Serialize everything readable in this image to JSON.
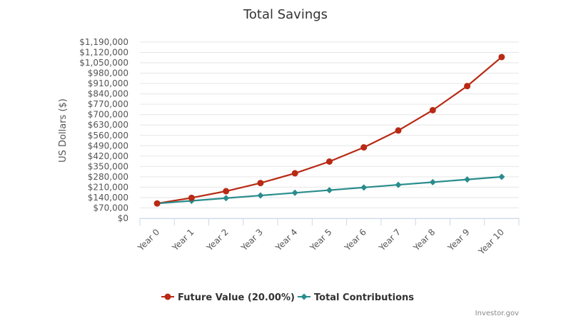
{
  "chart_data": {
    "type": "line",
    "title": "Total Savings",
    "ylabel": "US Dollars ($)",
    "xlabel": "",
    "categories": [
      "Year 0",
      "Year 1",
      "Year 2",
      "Year 3",
      "Year 4",
      "Year 5",
      "Year 6",
      "Year 7",
      "Year 8",
      "Year 9",
      "Year 10"
    ],
    "ylim": [
      0,
      1190000
    ],
    "yticks": [
      0,
      70000,
      140000,
      210000,
      280000,
      350000,
      420000,
      490000,
      560000,
      630000,
      700000,
      770000,
      840000,
      910000,
      980000,
      1050000,
      1120000,
      1190000
    ],
    "ytick_labels": [
      "$0",
      "$70,000",
      "$140,000",
      "$210,000",
      "$280,000",
      "$350,000",
      "$420,000",
      "$490,000",
      "$560,000",
      "$630,000",
      "$700,000",
      "$770,000",
      "$840,000",
      "$910,000",
      "$980,000",
      "$1,050,000",
      "$1,120,000",
      "$1,190,000"
    ],
    "grid": true,
    "legend_position": "bottom-center",
    "series": [
      {
        "name": "Future Value (20.00%)",
        "color": "#b82a14",
        "marker": "circle",
        "values": [
          100000,
          138000,
          183000,
          238000,
          304000,
          383000,
          479000,
          593000,
          730000,
          893000,
          1089000
        ]
      },
      {
        "name": "Total Contributions",
        "color": "#2a8c8c",
        "marker": "diamond",
        "values": [
          100000,
          118000,
          136000,
          154000,
          172000,
          190000,
          208000,
          226000,
          244000,
          262000,
          280000
        ]
      }
    ]
  },
  "credit": "Investor.gov"
}
